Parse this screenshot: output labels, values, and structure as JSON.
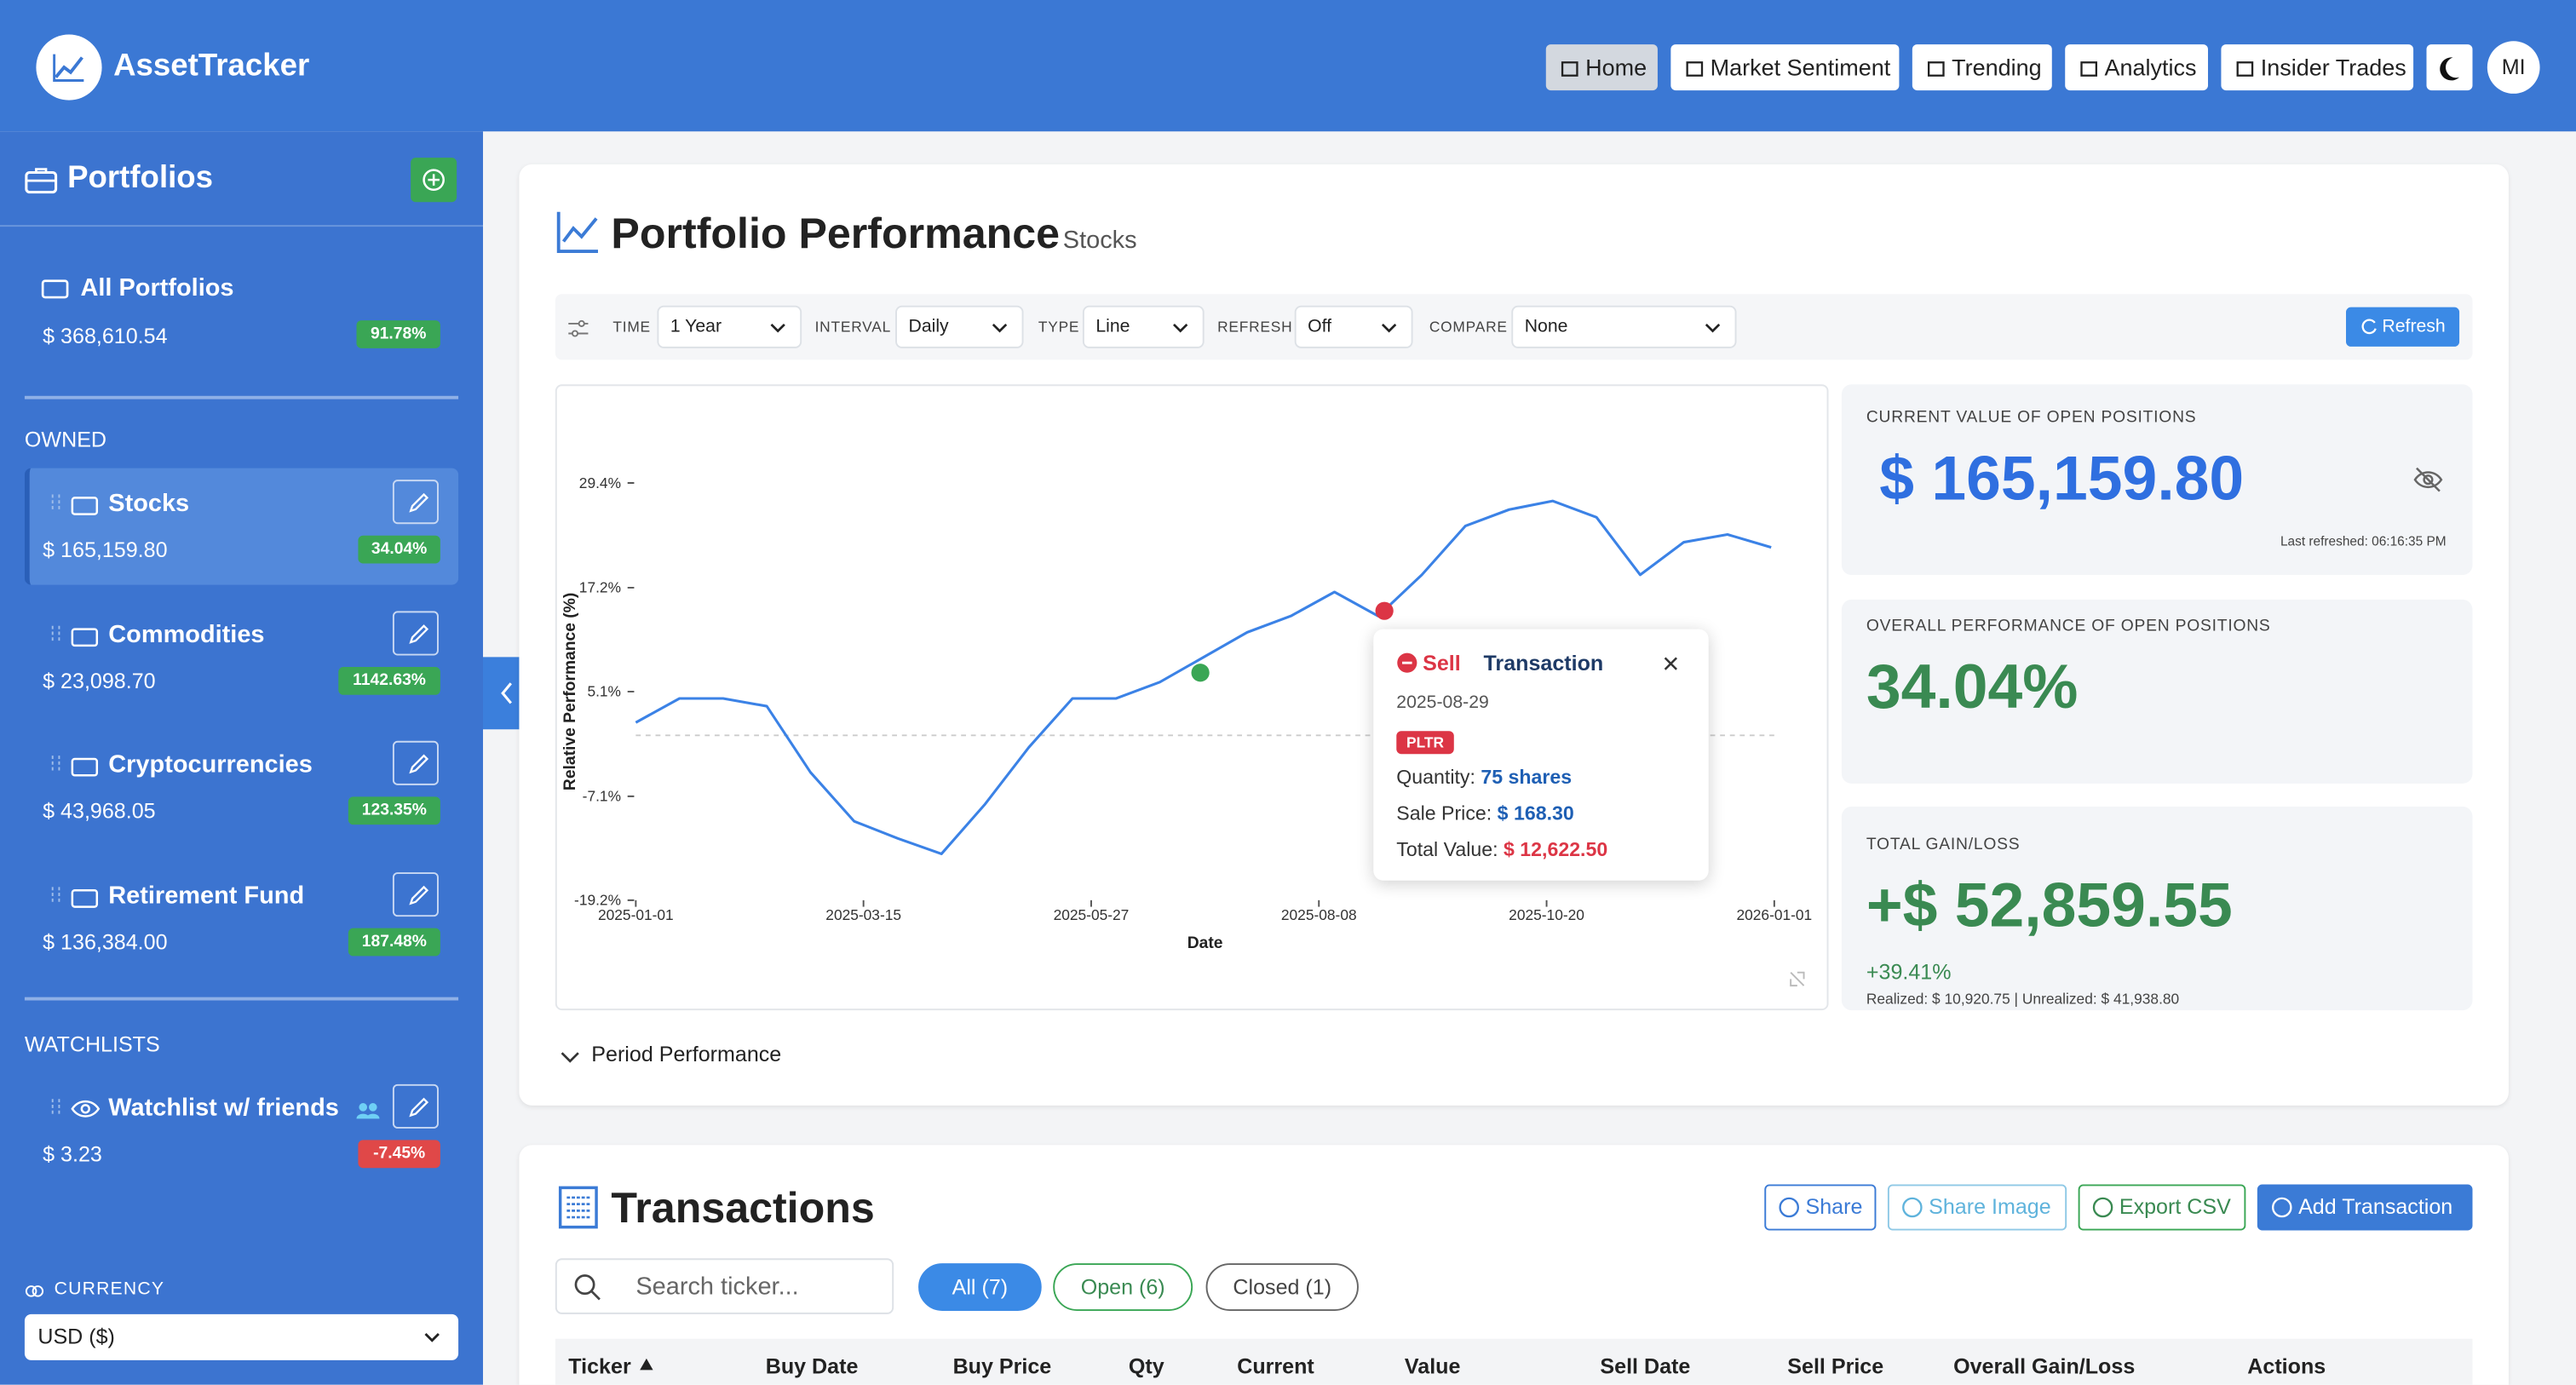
{
  "header": {
    "brand": "AssetTracker",
    "nav": [
      "Home",
      "Market Sentiment",
      "Trending",
      "Analytics",
      "Insider Trades"
    ],
    "avatar": "MI"
  },
  "sidebar": {
    "title": "Portfolios",
    "all": {
      "name": "All Portfolios",
      "value": "$ 368,610.54",
      "change": "91.78%"
    },
    "owned_label": "OWNED",
    "owned": [
      {
        "name": "Stocks",
        "value": "$ 165,159.80",
        "change": "34.04%"
      },
      {
        "name": "Commodities",
        "value": "$ 23,098.70",
        "change": "1142.63%"
      },
      {
        "name": "Cryptocurrencies",
        "value": "$ 43,968.05",
        "change": "123.35%"
      },
      {
        "name": "Retirement Fund",
        "value": "$ 136,384.00",
        "change": "187.48%"
      }
    ],
    "watchlists_label": "WATCHLISTS",
    "watchlists": [
      {
        "name": "Watchlist w/ friends",
        "value": "$ 3.23",
        "change": "-7.45%"
      }
    ],
    "currency_label": "CURRENCY",
    "currency": "USD ($)"
  },
  "performance": {
    "title": "Portfolio Performance",
    "subtitle": "Stocks",
    "controls": [
      {
        "label": "TIME",
        "value": "1 Year"
      },
      {
        "label": "INTERVAL",
        "value": "Daily"
      },
      {
        "label": "TYPE",
        "value": "Line"
      },
      {
        "label": "REFRESH",
        "value": "Off"
      },
      {
        "label": "COMPARE",
        "value": "None"
      }
    ],
    "refresh": "Refresh",
    "period": "Period Performance",
    "chart": {
      "type": "line",
      "ylabel": "Relative Performance (%)",
      "xlabel": "Date",
      "color": "#3b82e6",
      "x": [
        "2025-01-01",
        "2025-01-15",
        "2025-01-29",
        "2025-02-12",
        "2025-02-26",
        "2025-03-12",
        "2025-03-26",
        "2025-04-09",
        "2025-04-23",
        "2025-05-07",
        "2025-05-21",
        "2025-06-04",
        "2025-06-18",
        "2025-07-02",
        "2025-07-16",
        "2025-07-30",
        "2025-08-13",
        "2025-08-27",
        "2025-09-10",
        "2025-09-24",
        "2025-10-08",
        "2025-10-22",
        "2025-11-05",
        "2025-11-19",
        "2025-12-03",
        "2025-12-17",
        "2025-12-31"
      ],
      "values": [
        1.5,
        4.3,
        4.3,
        3.4,
        -4.3,
        -10,
        -12,
        -13.8,
        -8,
        -1.4,
        4.3,
        4.3,
        6.2,
        9.1,
        12,
        13.9,
        16.7,
        13.9,
        18.7,
        24.4,
        26.3,
        27.3,
        25.4,
        18.7,
        22.5,
        23.4,
        21.9
      ],
      "xlim": [
        "2025-01-01",
        "2026-01-01"
      ],
      "xticks": [
        "2025-01-01",
        "2025-03-15",
        "2025-05-27",
        "2025-08-08",
        "2025-10-20",
        "2026-01-01"
      ],
      "ylim": [
        -19.2,
        29.4
      ],
      "yticks": [
        {
          "value": -19.2,
          "label": "-19.2%"
        },
        {
          "value": -7.1,
          "label": "-7.1%"
        },
        {
          "value": 5.1,
          "label": "5.1%"
        },
        {
          "value": 17.2,
          "label": "17.2%"
        },
        {
          "value": 29.4,
          "label": "29.4%"
        }
      ],
      "markers": [
        {
          "date": "2025-07-01",
          "value": 7.3,
          "color": "#3aa655"
        },
        {
          "date": "2025-08-29",
          "value": 14.5,
          "color": "#dc3545"
        }
      ]
    },
    "tooltip": {
      "kind": "Sell",
      "title": "Transaction",
      "date": "2025-08-29",
      "ticker": "PLTR",
      "quantity_label": "Quantity:",
      "quantity": "75 shares",
      "price_label": "Sale Price:",
      "price": "$ 168.30",
      "total_label": "Total Value:",
      "total": "$ 12,622.50"
    },
    "cards": [
      {
        "label": "CURRENT VALUE OF OPEN POSITIONS",
        "value": "$ 165,159.80",
        "note": "Last refreshed: 06:16:35 PM"
      },
      {
        "label": "OVERALL PERFORMANCE OF OPEN POSITIONS",
        "value": "34.04%"
      },
      {
        "label": "TOTAL GAIN/LOSS",
        "value": "+$ 52,859.55",
        "change": "+39.41%",
        "note": "Realized: $ 10,920.75 | Unrealized: $ 41,938.80"
      }
    ]
  },
  "transactions": {
    "title": "Transactions",
    "buttons": [
      "Share",
      "Share Image",
      "Export CSV",
      "Add Transaction"
    ],
    "search": "Search ticker...",
    "filters": [
      "All (7)",
      "Open (6)",
      "Closed (1)"
    ],
    "columns": [
      "Ticker",
      "Buy Date",
      "Buy Price",
      "Qty",
      "Current",
      "Value",
      "Sell Date",
      "Sell Price",
      "Overall Gain/Loss",
      "Actions"
    ]
  }
}
